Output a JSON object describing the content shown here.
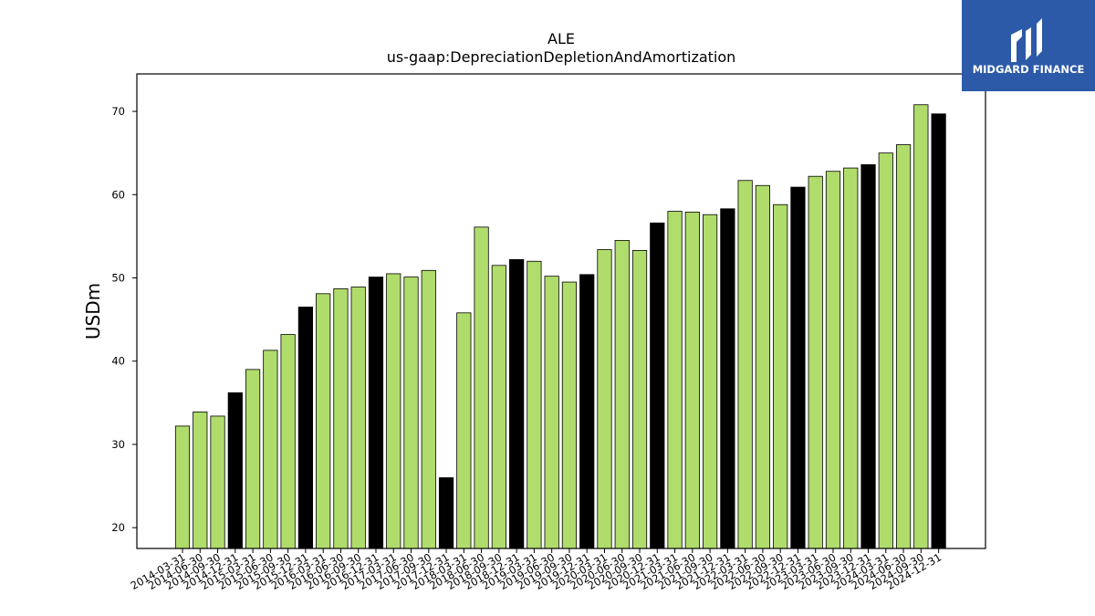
{
  "chart_data": {
    "type": "bar",
    "title": "ALE",
    "subtitle": "us-gaap:DepreciationDepletionAndAmortization",
    "xlabel": "",
    "ylabel": "USDm",
    "ylim": [
      17.5,
      74.5
    ],
    "yticks": [
      20,
      30,
      40,
      50,
      60,
      70
    ],
    "grid": false,
    "colors": {
      "quarter": "#b0dc6c",
      "year_end": "#000000",
      "edge": "#000000"
    },
    "categories": [
      "2014-03-31",
      "2014-06-30",
      "2014-09-30",
      "2014-12-31",
      "2015-03-31",
      "2015-06-30",
      "2015-09-30",
      "2015-12-31",
      "2016-03-31",
      "2016-06-30",
      "2016-09-30",
      "2016-12-31",
      "2017-03-31",
      "2017-06-30",
      "2017-09-30",
      "2017-12-31",
      "2018-03-31",
      "2018-06-30",
      "2018-09-30",
      "2018-12-31",
      "2019-03-31",
      "2019-06-30",
      "2019-09-30",
      "2019-12-31",
      "2020-03-31",
      "2020-06-30",
      "2020-09-30",
      "2020-12-31",
      "2021-03-31",
      "2021-06-30",
      "2021-09-30",
      "2021-12-31",
      "2022-03-31",
      "2022-06-30",
      "2022-09-30",
      "2022-12-31",
      "2023-03-31",
      "2023-06-30",
      "2023-09-30",
      "2023-12-31",
      "2024-03-31",
      "2024-06-30",
      "2024-09-30",
      "2024-12-31"
    ],
    "values": [
      32.2,
      33.9,
      33.4,
      36.2,
      39.0,
      41.3,
      43.2,
      46.5,
      48.1,
      48.7,
      48.9,
      50.1,
      50.5,
      50.1,
      50.9,
      26.0,
      45.8,
      56.1,
      51.5,
      52.2,
      52.0,
      50.2,
      49.5,
      50.4,
      53.4,
      54.5,
      53.3,
      56.6,
      58.0,
      57.9,
      57.6,
      58.3,
      61.7,
      61.1,
      58.8,
      60.9,
      62.2,
      62.8,
      63.2,
      63.6,
      65.0,
      66.0,
      70.8,
      69.7
    ]
  },
  "brand": {
    "name": "MIDGARD FINANCE",
    "color": "#2c5aa8"
  }
}
